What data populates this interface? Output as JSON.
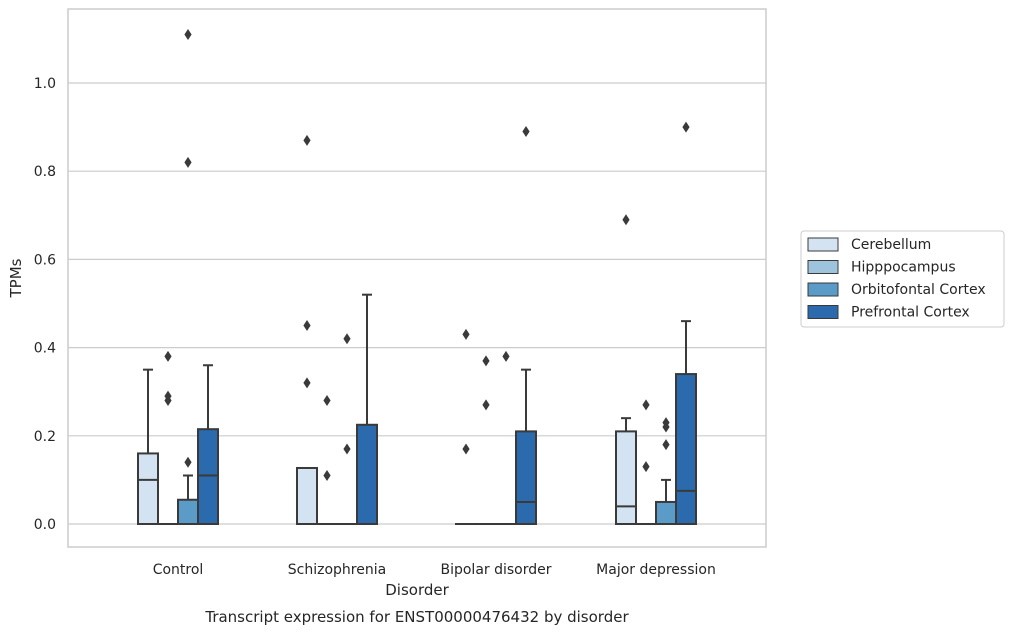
{
  "chart_data": {
    "type": "box",
    "xlabel": "Disorder",
    "ylabel": "TPMs",
    "caption": "Transcript expression for ENST00000476432 by disorder",
    "ylim": [
      -0.055,
      1.17
    ],
    "yticks": [
      0.0,
      0.2,
      0.4,
      0.6,
      0.8,
      1.0
    ],
    "ytick_labels": [
      "0.0",
      "0.2",
      "0.4",
      "0.6",
      "0.8",
      "1.0"
    ],
    "grid": true,
    "legend_position": "right",
    "categories": [
      "Control",
      "Schizophrenia",
      "Bipolar disorder",
      "Major depression"
    ],
    "series": [
      {
        "name": "Cerebellum",
        "color": "#d4e3f1",
        "boxes": [
          {
            "whislo": 0.0,
            "q1": 0.0,
            "med": 0.1,
            "q3": 0.16,
            "whishi": 0.35,
            "fliers": []
          },
          {
            "whislo": 0.0,
            "q1": 0.0,
            "med": 0.0,
            "q3": 0.127,
            "whishi": 0.127,
            "fliers": [
              0.32,
              0.45,
              0.87
            ]
          },
          {
            "whislo": 0.0,
            "q1": 0.0,
            "med": 0.0,
            "q3": 0.0,
            "whishi": 0.0,
            "fliers": [
              0.17,
              0.43
            ]
          },
          {
            "whislo": 0.0,
            "q1": 0.0,
            "med": 0.04,
            "q3": 0.21,
            "whishi": 0.24,
            "fliers": [
              0.69
            ]
          }
        ]
      },
      {
        "name": "Hipppocampus",
        "color": "#9ec4dd",
        "boxes": [
          {
            "whislo": 0.0,
            "q1": 0.0,
            "med": 0.0,
            "q3": 0.0,
            "whishi": 0.0,
            "fliers": [
              0.28,
              0.29,
              0.38
            ]
          },
          {
            "whislo": 0.0,
            "q1": 0.0,
            "med": 0.0,
            "q3": 0.0,
            "whishi": 0.0,
            "fliers": [
              0.11,
              0.28
            ]
          },
          {
            "whislo": 0.0,
            "q1": 0.0,
            "med": 0.0,
            "q3": 0.0,
            "whishi": 0.0,
            "fliers": [
              0.27,
              0.37
            ]
          },
          {
            "whislo": 0.0,
            "q1": 0.0,
            "med": 0.0,
            "q3": 0.0,
            "whishi": 0.0,
            "fliers": [
              0.13,
              0.27
            ]
          }
        ]
      },
      {
        "name": "Orbitofontal Cortex",
        "color": "#5b9bc8",
        "boxes": [
          {
            "whislo": 0.0,
            "q1": 0.0,
            "med": 0.0,
            "q3": 0.055,
            "whishi": 0.11,
            "fliers": [
              0.14,
              0.82,
              1.11
            ]
          },
          {
            "whislo": 0.0,
            "q1": 0.0,
            "med": 0.0,
            "q3": 0.0,
            "whishi": 0.0,
            "fliers": [
              0.17,
              0.42
            ]
          },
          {
            "whislo": 0.0,
            "q1": 0.0,
            "med": 0.0,
            "q3": 0.0,
            "whishi": 0.0,
            "fliers": [
              0.38
            ]
          },
          {
            "whislo": 0.0,
            "q1": 0.0,
            "med": 0.0,
            "q3": 0.05,
            "whishi": 0.1,
            "fliers": [
              0.18,
              0.22,
              0.23
            ]
          }
        ]
      },
      {
        "name": "Prefrontal Cortex",
        "color": "#2a6aad",
        "boxes": [
          {
            "whislo": 0.0,
            "q1": 0.0,
            "med": 0.11,
            "q3": 0.215,
            "whishi": 0.36,
            "fliers": []
          },
          {
            "whislo": 0.0,
            "q1": 0.0,
            "med": 0.0,
            "q3": 0.225,
            "whishi": 0.52,
            "fliers": []
          },
          {
            "whislo": 0.0,
            "q1": 0.0,
            "med": 0.05,
            "q3": 0.21,
            "whishi": 0.35,
            "fliers": [
              0.89
            ]
          },
          {
            "whislo": 0.0,
            "q1": 0.0,
            "med": 0.075,
            "q3": 0.34,
            "whishi": 0.46,
            "fliers": [
              0.9
            ]
          }
        ]
      }
    ]
  }
}
